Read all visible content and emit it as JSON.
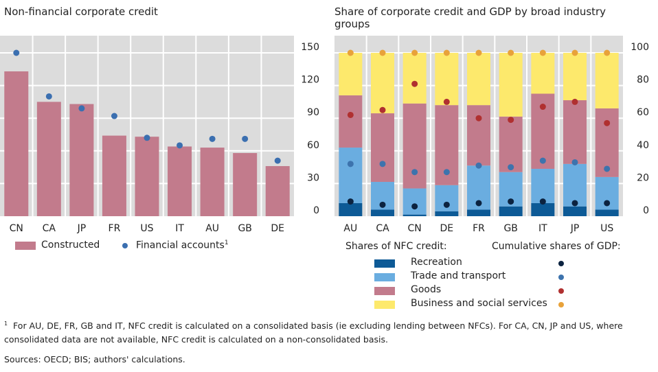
{
  "chart_data": [
    {
      "type": "bar",
      "title": "Non-financial corporate credit",
      "categories": [
        "CN",
        "CA",
        "JP",
        "FR",
        "US",
        "IT",
        "AU",
        "GB",
        "DE"
      ],
      "series": [
        {
          "name": "Constructed",
          "kind": "bar",
          "color": "#c27b8c",
          "values": [
            133,
            105,
            103,
            74,
            73,
            64,
            63,
            58,
            46
          ]
        },
        {
          "name": "Financial accounts",
          "name_superscript": "1",
          "kind": "dot",
          "color": "#3b6fb0",
          "values": [
            150,
            110,
            99,
            92,
            72,
            65,
            71,
            71,
            51
          ]
        }
      ],
      "yticks": [
        0,
        30,
        60,
        90,
        120,
        150
      ],
      "ylim": [
        0,
        165
      ],
      "yaxis_side": "right",
      "grid": true,
      "legend_position": "bottom"
    },
    {
      "type": "bar",
      "stacked": true,
      "title": "Share of corporate credit and GDP by broad industry groups",
      "categories": [
        "AU",
        "CA",
        "CN",
        "DE",
        "FR",
        "GB",
        "IT",
        "JP",
        "US"
      ],
      "bars_legend_title": "Shares of NFC credit:",
      "dots_legend_title": "Cumulative shares of GDP:",
      "series": [
        {
          "name": "Recreation",
          "color": "#0d5a96",
          "dot_color": "#0c2340",
          "values": [
            8,
            4,
            1,
            3,
            4,
            6,
            8,
            6,
            4
          ],
          "gdp_cumulative": [
            9,
            7,
            6,
            7,
            8,
            9,
            9,
            8,
            8
          ]
        },
        {
          "name": "Trade and transport",
          "color": "#6aade0",
          "dot_color": "#3d73ad",
          "values": [
            34,
            17,
            16,
            16,
            27,
            21,
            21,
            26,
            20
          ],
          "gdp_cumulative": [
            32,
            32,
            27,
            27,
            31,
            30,
            34,
            33,
            29
          ]
        },
        {
          "name": "Goods",
          "color": "#c27b8c",
          "dot_color": "#b03030",
          "values": [
            32,
            42,
            52,
            49,
            37,
            34,
            46,
            39,
            42
          ],
          "gdp_cumulative": [
            62,
            65,
            81,
            70,
            60,
            59,
            67,
            70,
            57
          ]
        },
        {
          "name": "Business and social services",
          "color": "#fde96c",
          "dot_color": "#e8a23a",
          "values": [
            26,
            37,
            31,
            32,
            32,
            39,
            25,
            29,
            34
          ],
          "gdp_cumulative": [
            100,
            100,
            100,
            100,
            100,
            100,
            100,
            100,
            100
          ]
        }
      ],
      "yticks": [
        0,
        20,
        40,
        60,
        80,
        100
      ],
      "ylim": [
        0,
        110
      ],
      "yaxis_side": "right",
      "grid": true,
      "legend_position": "bottom"
    }
  ],
  "footnote": "For AU, DE, FR, GB and IT, NFC credit is calculated on a consolidated basis (ie excluding lending between NFCs). For CA, CN, JP and US, where consolidated data are not available, NFC credit is calculated on a non-consolidated basis.",
  "footnote_marker": "1",
  "sources": "Sources: OECD; BIS; authors' calculations."
}
